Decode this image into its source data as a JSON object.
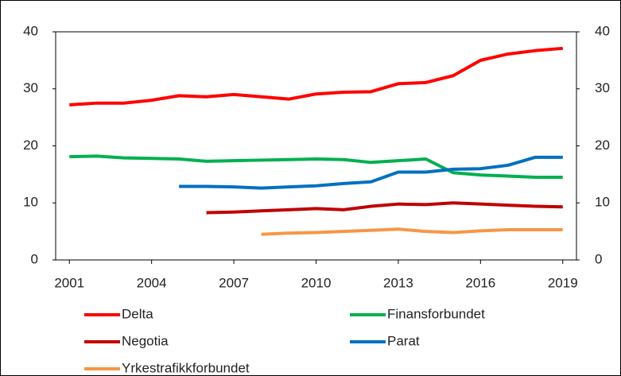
{
  "chart_data": {
    "type": "line",
    "categories": [
      2001,
      null,
      null,
      2004,
      null,
      null,
      2007,
      null,
      null,
      2010,
      null,
      null,
      2013,
      null,
      null,
      2016,
      null,
      null,
      2019
    ],
    "series": [
      {
        "name": "Delta",
        "color": "#ff0000",
        "values": [
          27.2,
          27.5,
          27.5,
          28.0,
          28.8,
          28.6,
          29.0,
          28.6,
          28.2,
          29.1,
          29.4,
          29.5,
          30.9,
          31.1,
          32.3,
          35.0,
          36.1,
          36.7,
          37.1
        ]
      },
      {
        "name": "Finansforbundet",
        "color": "#00b050",
        "values": [
          18.1,
          18.2,
          17.9,
          17.8,
          17.7,
          17.3,
          17.4,
          17.5,
          17.6,
          17.7,
          17.6,
          17.1,
          17.4,
          17.7,
          15.3,
          14.9,
          14.7,
          14.5,
          14.5
        ]
      },
      {
        "name": "Negotia",
        "color": "#c00000",
        "values": [
          null,
          null,
          null,
          null,
          null,
          8.3,
          8.4,
          8.6,
          8.8,
          9.0,
          8.8,
          9.4,
          9.8,
          9.7,
          10.0,
          9.8,
          9.6,
          9.4,
          9.3
        ]
      },
      {
        "name": "Parat",
        "color": "#0070c0",
        "values": [
          null,
          null,
          null,
          null,
          12.9,
          12.9,
          12.8,
          12.6,
          12.8,
          13.0,
          13.4,
          13.7,
          15.4,
          15.4,
          15.9,
          16.0,
          16.6,
          18.0,
          18.0
        ]
      },
      {
        "name": "Yrkestrafikkforbundet",
        "color": "#f79646",
        "values": [
          null,
          null,
          null,
          null,
          null,
          null,
          null,
          4.5,
          4.7,
          4.8,
          5.0,
          5.2,
          5.4,
          5.0,
          4.8,
          5.1,
          5.3,
          5.3,
          5.3
        ]
      }
    ],
    "ylim": [
      0,
      40
    ],
    "yticks": [
      0,
      10,
      20,
      30,
      40
    ],
    "y2lim": [
      0,
      40
    ],
    "y2ticks": [
      0,
      10,
      20,
      30,
      40
    ]
  }
}
